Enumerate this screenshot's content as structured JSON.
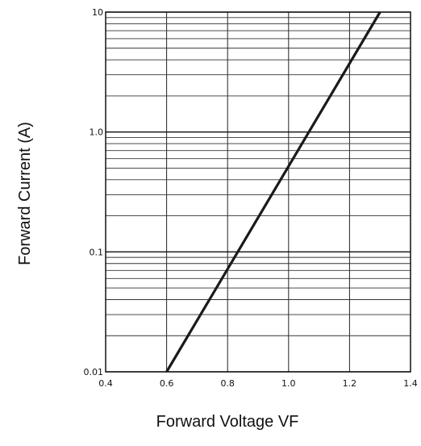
{
  "chart_data": {
    "type": "line",
    "title": "",
    "xlabel": "Forward Voltage VF",
    "ylabel": "Forward Current (A)",
    "x_scale": "linear",
    "y_scale": "log",
    "xlim": [
      0.4,
      1.4
    ],
    "ylim": [
      0.01,
      10
    ],
    "x_ticks": [
      "0.4",
      "0.6",
      "0.8",
      "1.0",
      "1.2",
      "1.4"
    ],
    "y_ticks": [
      "0.01",
      "0.1",
      "1.0",
      "10"
    ],
    "grid": true,
    "legend": "none",
    "series": [
      {
        "x": [
          0.6,
          1.3
        ],
        "y": [
          0.01,
          10
        ],
        "color": "#1a1a1a"
      }
    ]
  }
}
